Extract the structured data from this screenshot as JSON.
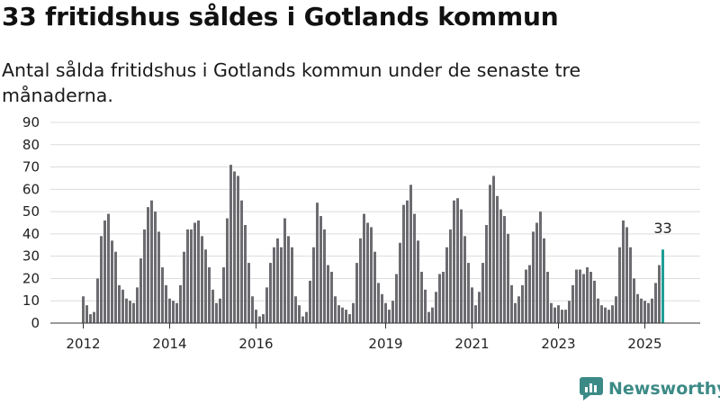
{
  "header": {
    "title": "33 fritidshus såldes i Gotlands kommun",
    "subtitle": "Antal sålda fritidshus i Gotlands kommun under de senaste tre månaderna."
  },
  "brand": {
    "name": "Newsworthy",
    "color": "#3c8a86",
    "icon": "newsworthy-logo-icon"
  },
  "chart_data": {
    "type": "bar",
    "start": "2012-01",
    "x_ticks": [
      "2012",
      "2014",
      "2016",
      "2019",
      "2021",
      "2023",
      "2025"
    ],
    "y_ticks": [
      0,
      10,
      20,
      30,
      40,
      50,
      60,
      70,
      80,
      90
    ],
    "ylim": [
      0,
      90
    ],
    "grid": true,
    "bar_color": "#6b6b70",
    "highlight_color": "#1f9e96",
    "highlight_label": "33",
    "values": [
      12,
      8,
      4,
      5,
      20,
      39,
      46,
      49,
      37,
      32,
      17,
      15,
      11,
      10,
      9,
      16,
      29,
      42,
      52,
      55,
      50,
      41,
      25,
      17,
      11,
      10,
      9,
      17,
      32,
      42,
      42,
      45,
      46,
      39,
      33,
      25,
      15,
      9,
      11,
      25,
      47,
      71,
      68,
      66,
      55,
      44,
      27,
      12,
      6,
      3,
      4,
      16,
      27,
      34,
      38,
      34,
      47,
      39,
      34,
      12,
      8,
      3,
      5,
      19,
      34,
      54,
      48,
      42,
      26,
      23,
      12,
      8,
      7,
      6,
      4,
      9,
      27,
      38,
      49,
      45,
      43,
      32,
      18,
      13,
      9,
      6,
      10,
      22,
      36,
      53,
      55,
      62,
      49,
      37,
      23,
      15,
      5,
      7,
      14,
      22,
      23,
      34,
      42,
      55,
      56,
      51,
      39,
      27,
      16,
      8,
      14,
      27,
      44,
      62,
      66,
      57,
      51,
      48,
      40,
      17,
      9,
      12,
      17,
      24,
      26,
      41,
      45,
      50,
      38,
      23,
      9,
      7,
      8,
      6,
      6,
      10,
      17,
      24,
      24,
      22,
      25,
      23,
      19,
      11,
      8,
      7,
      6,
      8,
      12,
      34,
      46,
      43,
      34,
      20,
      13,
      11,
      10,
      9,
      11,
      18,
      26,
      33
    ]
  }
}
